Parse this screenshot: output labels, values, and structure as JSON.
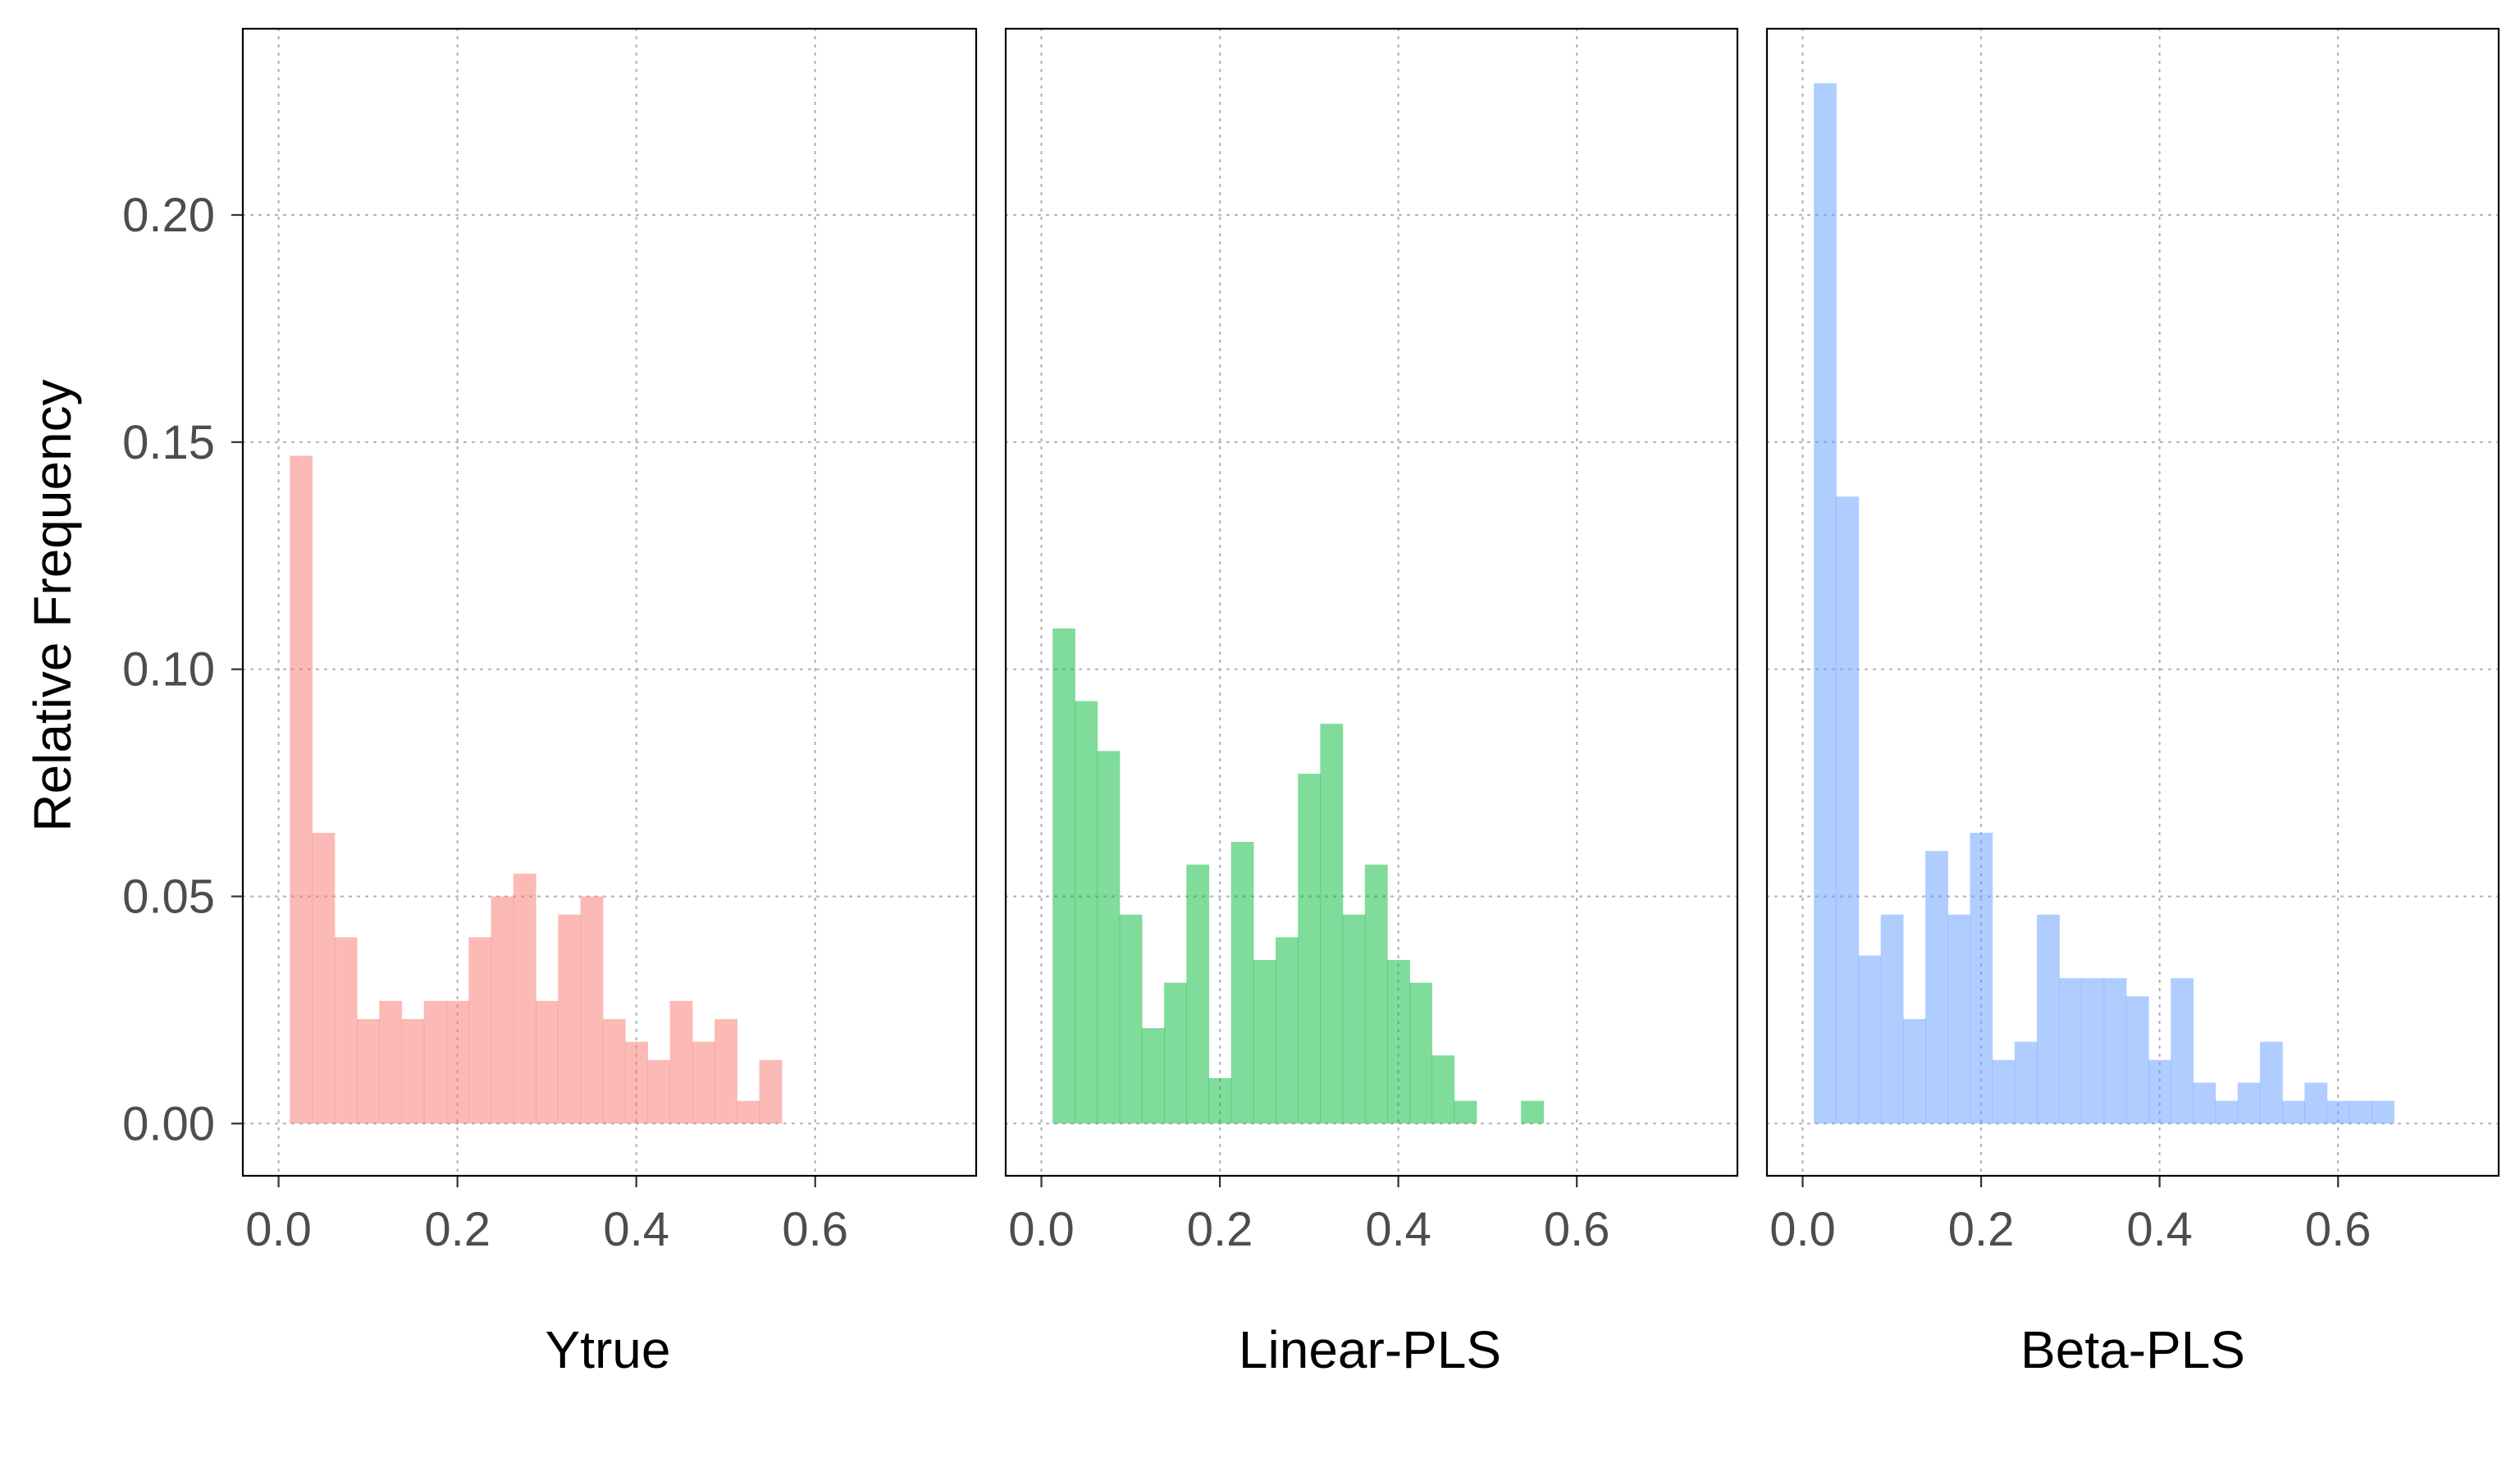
{
  "chart_data": [
    {
      "type": "bar",
      "xlabel": "Ytrue",
      "ylabel": "Relative Frequency",
      "color": "#F8766D",
      "bin_width": 0.025,
      "bin_start": 0.0125,
      "values": [
        0.147,
        0.064,
        0.041,
        0.023,
        0.027,
        0.023,
        0.027,
        0.027,
        0.041,
        0.05,
        0.055,
        0.027,
        0.046,
        0.05,
        0.023,
        0.018,
        0.014,
        0.027,
        0.018,
        0.023,
        0.005,
        0.014
      ],
      "xlim": [
        -0.04,
        0.78
      ],
      "ylim": [
        -0.0115,
        0.241
      ],
      "xticks": [
        "0.0",
        "0.2",
        "0.4",
        "0.6"
      ],
      "grid": true
    },
    {
      "type": "bar",
      "xlabel": "Linear-PLS",
      "ylabel": "Relative Frequency",
      "color": "#00BA38",
      "bin_width": 0.025,
      "bin_start": 0.0125,
      "values": [
        0.109,
        0.093,
        0.082,
        0.046,
        0.021,
        0.031,
        0.057,
        0.01,
        0.062,
        0.036,
        0.041,
        0.077,
        0.088,
        0.046,
        0.057,
        0.036,
        0.031,
        0.015,
        0.005,
        0.0,
        0.0,
        0.005
      ],
      "xlim": [
        -0.04,
        0.78
      ],
      "ylim": [
        -0.0115,
        0.241
      ],
      "xticks": [
        "0.0",
        "0.2",
        "0.4",
        "0.6"
      ],
      "grid": true
    },
    {
      "type": "bar",
      "xlabel": "Beta-PLS",
      "ylabel": "Relative Frequency",
      "color": "#619CFF",
      "bin_width": 0.025,
      "bin_start": 0.0125,
      "values": [
        0.229,
        0.138,
        0.037,
        0.046,
        0.023,
        0.06,
        0.046,
        0.064,
        0.014,
        0.018,
        0.046,
        0.032,
        0.032,
        0.032,
        0.028,
        0.014,
        0.032,
        0.009,
        0.005,
        0.009,
        0.018,
        0.005,
        0.009,
        0.005,
        0.005,
        0.005
      ],
      "xlim": [
        -0.04,
        0.78
      ],
      "ylim": [
        -0.0115,
        0.241
      ],
      "xticks": [
        "0.0",
        "0.2",
        "0.4",
        "0.6"
      ],
      "grid": true
    }
  ],
  "y_axis": {
    "label": "Relative Frequency",
    "ticks": [
      "0.00",
      "0.05",
      "0.10",
      "0.15",
      "0.20"
    ],
    "tick_values": [
      0.0,
      0.05,
      0.1,
      0.15,
      0.2
    ]
  },
  "x_tick_values": [
    0.0,
    0.2,
    0.4,
    0.6
  ],
  "bar_opacity": 0.5
}
